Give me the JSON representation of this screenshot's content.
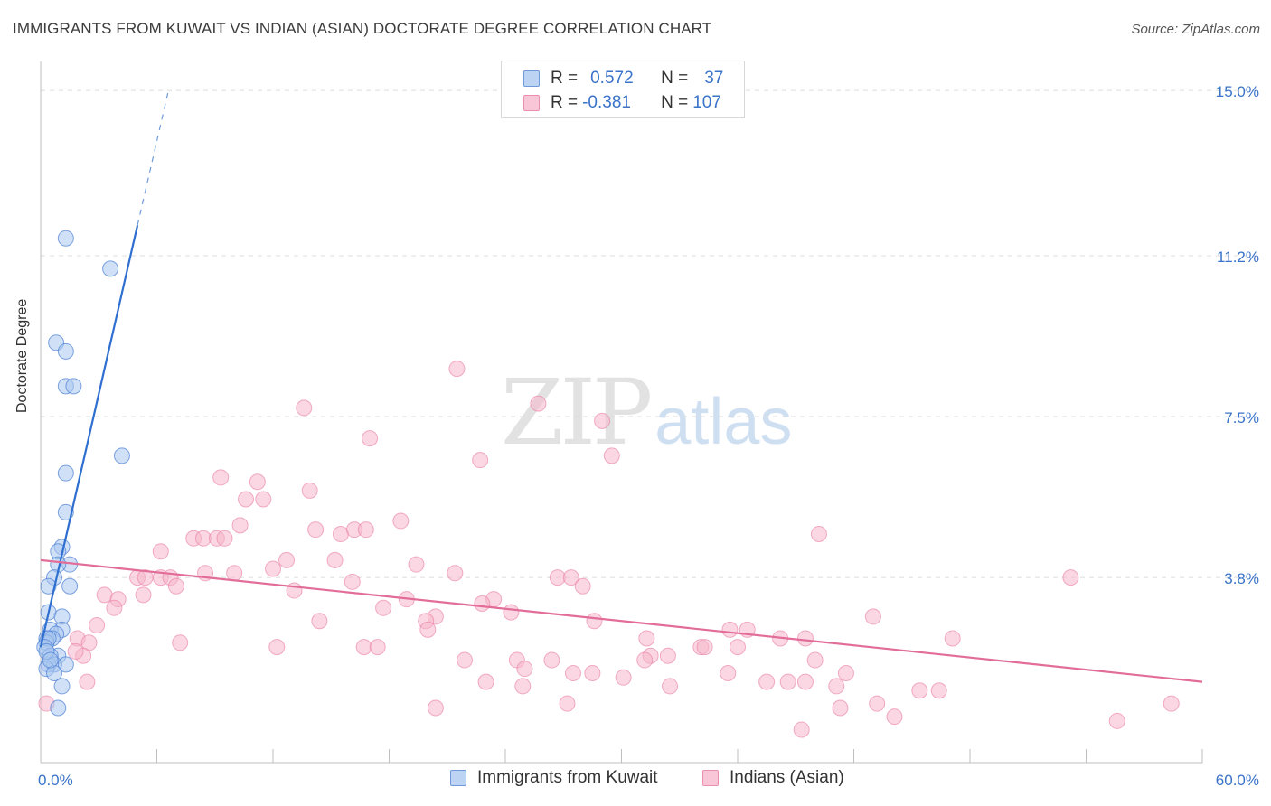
{
  "title": "IMMIGRANTS FROM KUWAIT VS INDIAN (ASIAN) DOCTORATE DEGREE CORRELATION CHART",
  "source": "Source: ZipAtlas.com",
  "watermark": {
    "zip": "ZIP",
    "atlas": "atlas"
  },
  "colors": {
    "blue": "#4a7fd4",
    "blue_fill": "#a9c6ef",
    "pink": "#e97ba3",
    "pink_fill": "#f5b6cb",
    "tick_text": "#3a73c9"
  },
  "legend": {
    "r_label": "R =",
    "n_label": "N =",
    "rows": [
      {
        "r": "0.572",
        "n": "37"
      },
      {
        "r": "-0.381",
        "n": "107"
      }
    ]
  },
  "bottom_legend": {
    "series1": "Immigrants from Kuwait",
    "series2": "Indians (Asian)"
  },
  "chart_data": {
    "type": "scatter",
    "title": "IMMIGRANTS FROM KUWAIT VS INDIAN (ASIAN) DOCTORATE DEGREE CORRELATION CHART",
    "xlabel": "",
    "ylabel": "Doctorate Degree",
    "xlim": [
      0,
      60
    ],
    "ylim": [
      0,
      15.5
    ],
    "x_tick_labels": [
      "0.0%",
      "60.0%"
    ],
    "y_tick_labels": [
      "15.0%",
      "11.2%",
      "7.5%",
      "3.8%"
    ],
    "y_ticks": [
      15.0,
      11.2,
      7.5,
      3.8
    ],
    "series": [
      {
        "name": "Immigrants from Kuwait",
        "r": 0.572,
        "n": 37,
        "trend": {
          "x0": 0,
          "y0": 2.2,
          "x1": 5.0,
          "y1": 11.9,
          "dash_x1": 6.6,
          "dash_y1": 15.0
        },
        "points": [
          [
            1.3,
            11.6
          ],
          [
            3.6,
            10.9
          ],
          [
            0.8,
            9.2
          ],
          [
            1.3,
            9.0
          ],
          [
            1.3,
            8.2
          ],
          [
            1.7,
            8.2
          ],
          [
            4.2,
            6.6
          ],
          [
            1.3,
            6.2
          ],
          [
            1.3,
            5.3
          ],
          [
            1.1,
            4.5
          ],
          [
            0.9,
            4.4
          ],
          [
            1.5,
            4.1
          ],
          [
            0.9,
            4.1
          ],
          [
            0.7,
            3.8
          ],
          [
            1.5,
            3.6
          ],
          [
            0.4,
            3.6
          ],
          [
            0.4,
            3.0
          ],
          [
            1.1,
            2.9
          ],
          [
            1.1,
            2.6
          ],
          [
            0.5,
            2.6
          ],
          [
            0.8,
            2.5
          ],
          [
            0.3,
            2.4
          ],
          [
            0.6,
            2.4
          ],
          [
            0.3,
            2.3
          ],
          [
            0.4,
            2.4
          ],
          [
            0.2,
            2.2
          ],
          [
            0.9,
            2.0
          ],
          [
            0.5,
            2.0
          ],
          [
            0.4,
            1.8
          ],
          [
            0.7,
            1.8
          ],
          [
            1.3,
            1.8
          ],
          [
            0.3,
            1.7
          ],
          [
            0.7,
            1.6
          ],
          [
            1.1,
            1.3
          ],
          [
            0.9,
            0.8
          ],
          [
            0.3,
            2.1
          ],
          [
            0.5,
            1.9
          ]
        ]
      },
      {
        "name": "Indians (Asian)",
        "r": -0.381,
        "n": 107,
        "trend": {
          "x0": 0,
          "y0": 4.2,
          "x1": 60,
          "y1": 1.4
        },
        "points": [
          [
            21.5,
            8.6
          ],
          [
            13.6,
            7.7
          ],
          [
            25.7,
            7.8
          ],
          [
            29.0,
            7.4
          ],
          [
            17.0,
            7.0
          ],
          [
            22.7,
            6.5
          ],
          [
            29.5,
            6.6
          ],
          [
            9.3,
            6.1
          ],
          [
            11.2,
            6.0
          ],
          [
            13.9,
            5.8
          ],
          [
            10.6,
            5.6
          ],
          [
            11.5,
            5.6
          ],
          [
            18.6,
            5.1
          ],
          [
            10.3,
            5.0
          ],
          [
            14.2,
            4.9
          ],
          [
            15.5,
            4.8
          ],
          [
            16.2,
            4.9
          ],
          [
            16.8,
            4.9
          ],
          [
            7.9,
            4.7
          ],
          [
            8.4,
            4.7
          ],
          [
            9.1,
            4.7
          ],
          [
            9.5,
            4.7
          ],
          [
            40.2,
            4.8
          ],
          [
            6.2,
            4.4
          ],
          [
            12.7,
            4.2
          ],
          [
            15.2,
            4.2
          ],
          [
            19.4,
            4.1
          ],
          [
            12.0,
            4.0
          ],
          [
            21.4,
            3.9
          ],
          [
            5.0,
            3.8
          ],
          [
            5.4,
            3.8
          ],
          [
            6.2,
            3.8
          ],
          [
            6.7,
            3.8
          ],
          [
            8.5,
            3.9
          ],
          [
            10.0,
            3.9
          ],
          [
            16.1,
            3.7
          ],
          [
            26.7,
            3.8
          ],
          [
            27.4,
            3.8
          ],
          [
            28.0,
            3.6
          ],
          [
            53.2,
            3.8
          ],
          [
            7.0,
            3.6
          ],
          [
            3.3,
            3.4
          ],
          [
            4.0,
            3.3
          ],
          [
            5.3,
            3.4
          ],
          [
            13.1,
            3.5
          ],
          [
            18.9,
            3.3
          ],
          [
            23.4,
            3.3
          ],
          [
            22.8,
            3.2
          ],
          [
            17.7,
            3.1
          ],
          [
            3.8,
            3.1
          ],
          [
            20.4,
            2.9
          ],
          [
            24.3,
            3.0
          ],
          [
            28.6,
            2.8
          ],
          [
            43.0,
            2.9
          ],
          [
            19.9,
            2.8
          ],
          [
            14.4,
            2.8
          ],
          [
            20.0,
            2.6
          ],
          [
            2.9,
            2.7
          ],
          [
            35.6,
            2.6
          ],
          [
            36.5,
            2.6
          ],
          [
            31.3,
            2.4
          ],
          [
            1.9,
            2.4
          ],
          [
            2.5,
            2.3
          ],
          [
            7.2,
            2.3
          ],
          [
            12.2,
            2.2
          ],
          [
            16.7,
            2.2
          ],
          [
            17.4,
            2.2
          ],
          [
            34.1,
            2.2
          ],
          [
            34.3,
            2.2
          ],
          [
            36.0,
            2.2
          ],
          [
            38.2,
            2.4
          ],
          [
            39.5,
            2.4
          ],
          [
            47.1,
            2.4
          ],
          [
            2.2,
            2.0
          ],
          [
            1.8,
            2.1
          ],
          [
            31.5,
            2.0
          ],
          [
            32.4,
            2.0
          ],
          [
            21.9,
            1.9
          ],
          [
            24.6,
            1.9
          ],
          [
            26.4,
            1.9
          ],
          [
            31.2,
            1.9
          ],
          [
            40.0,
            1.9
          ],
          [
            25.0,
            1.7
          ],
          [
            27.5,
            1.6
          ],
          [
            28.5,
            1.6
          ],
          [
            30.1,
            1.5
          ],
          [
            35.5,
            1.6
          ],
          [
            41.6,
            1.6
          ],
          [
            2.4,
            1.4
          ],
          [
            23.0,
            1.4
          ],
          [
            37.5,
            1.4
          ],
          [
            38.6,
            1.4
          ],
          [
            39.5,
            1.4
          ],
          [
            24.9,
            1.3
          ],
          [
            32.5,
            1.3
          ],
          [
            41.1,
            1.3
          ],
          [
            45.4,
            1.2
          ],
          [
            46.4,
            1.2
          ],
          [
            27.2,
            0.9
          ],
          [
            41.3,
            0.8
          ],
          [
            43.2,
            0.9
          ],
          [
            58.4,
            0.9
          ],
          [
            20.4,
            0.8
          ],
          [
            44.1,
            0.6
          ],
          [
            55.6,
            0.5
          ],
          [
            39.3,
            0.3
          ],
          [
            0.3,
            0.9
          ]
        ]
      }
    ]
  }
}
